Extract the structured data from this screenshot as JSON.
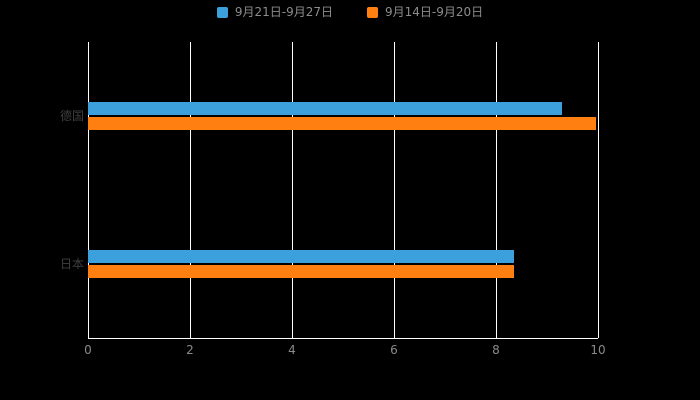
{
  "background_color": "#000000",
  "legend": [
    {
      "label": "9月21日-9月27日",
      "color": "#3ba0dc"
    },
    {
      "label": "9月14日-9月20日",
      "color": "#ff7f11"
    }
  ],
  "chart_data": {
    "type": "bar",
    "orientation": "horizontal",
    "title": "",
    "xlabel": "",
    "ylabel": "",
    "categories": [
      "德国",
      "日本"
    ],
    "series": [
      {
        "name": "9月21日-9月27日",
        "color": "#3ba0dc",
        "values": [
          9.3,
          8.35
        ]
      },
      {
        "name": "9月14日-9月20日",
        "color": "#ff7f11",
        "values": [
          9.97,
          8.35
        ]
      }
    ],
    "xlim": [
      0,
      10
    ],
    "xticks": [
      0,
      2,
      4,
      6,
      8,
      10
    ],
    "grid": true,
    "legend_position": "top",
    "axis_color": "#ffffff",
    "gridline_color": "#ffffff",
    "tick_label_color": "#8a8a8a",
    "category_label_color": "#3f3f3f"
  }
}
